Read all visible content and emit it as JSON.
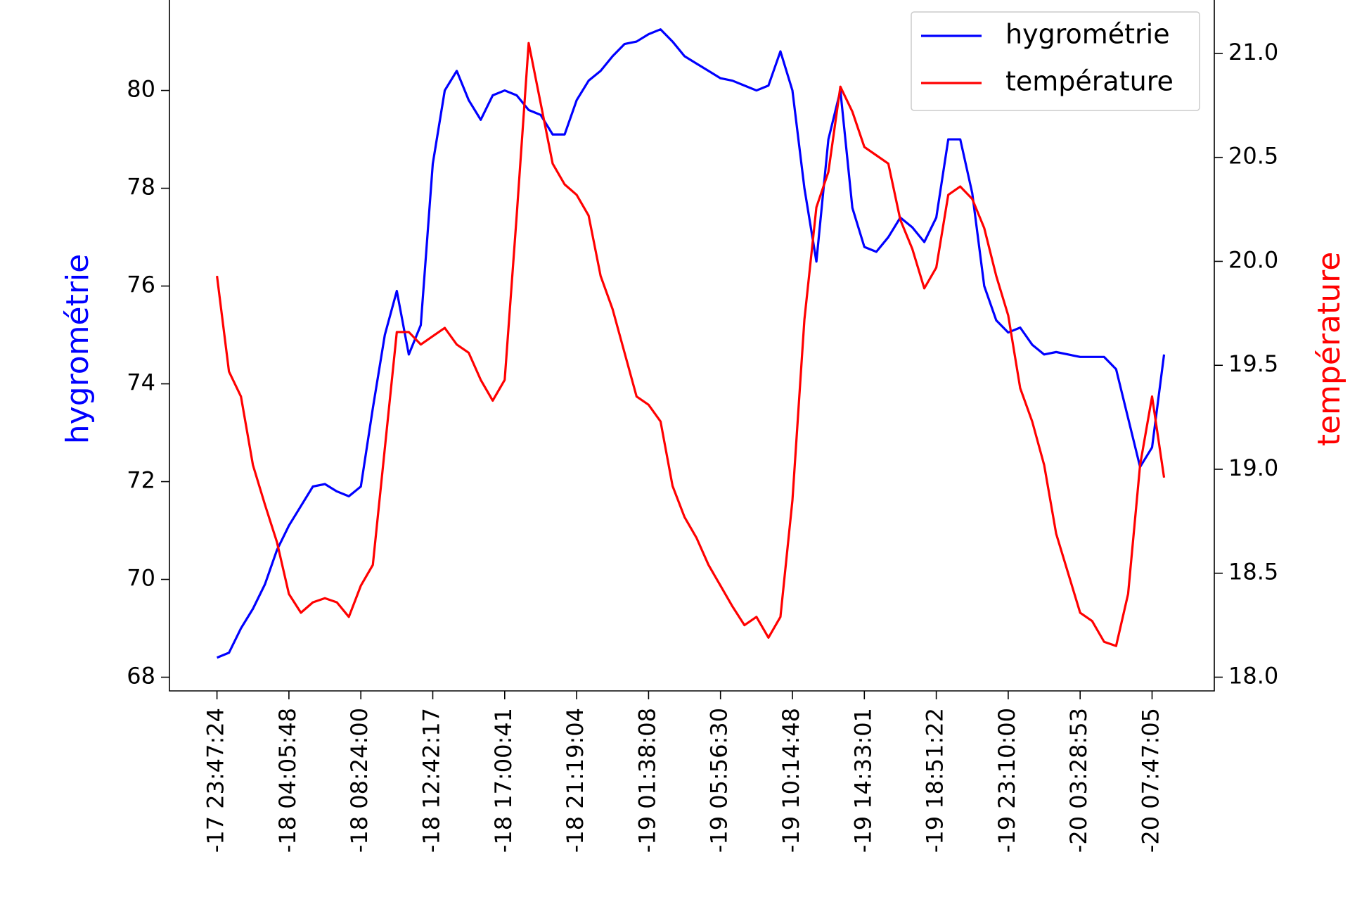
{
  "chart_data": {
    "type": "line",
    "categories": [
      "-17 23:47:24",
      null,
      null,
      null,
      null,
      null,
      "-18 04:05:48",
      null,
      null,
      null,
      null,
      null,
      "-18 08:24:00",
      null,
      null,
      null,
      null,
      null,
      "-18 12:42:17",
      null,
      null,
      null,
      null,
      null,
      "-18 17:00:41",
      null,
      null,
      null,
      null,
      null,
      "-18 21:19:04",
      null,
      null,
      null,
      null,
      null,
      "-19 01:38:08",
      null,
      null,
      null,
      null,
      null,
      "-19 05:56:30",
      null,
      null,
      null,
      null,
      null,
      "-19 10:14:48",
      null,
      null,
      null,
      null,
      null,
      "-19 14:33:01",
      null,
      null,
      null,
      null,
      null,
      "-19 18:51:22",
      null,
      null,
      null,
      null,
      null,
      "-19 23:10:00",
      null,
      null,
      null,
      null,
      null,
      "-20 03:28:53",
      null,
      null,
      null,
      null,
      null,
      "-20 07:47:05",
      null
    ],
    "ylabel": "hygrométrie",
    "y2label": "température",
    "ylim": [
      67.72,
      81.85
    ],
    "yticks": [
      68,
      70,
      72,
      74,
      76,
      78,
      80
    ],
    "y2lim": [
      17.934,
      21.257
    ],
    "y2ticks": [
      {
        "value": 18,
        "label": "18.0"
      },
      18.5,
      {
        "value": 19,
        "label": "19.0"
      },
      19.5,
      {
        "value": 20,
        "label": "20.0"
      },
      20.5,
      {
        "value": 21,
        "label": "21.0"
      }
    ],
    "legend": "upper right",
    "series": [
      {
        "name": "hygrométrie",
        "color": "#0000ff",
        "axis": "y",
        "values": [
          68.4,
          68.5,
          69.0,
          69.4,
          69.9,
          70.6,
          71.1,
          71.5,
          71.9,
          71.95,
          71.8,
          71.7,
          71.9,
          73.5,
          75.0,
          75.9,
          74.6,
          75.2,
          78.5,
          80.0,
          80.4,
          79.8,
          79.4,
          79.9,
          80.0,
          79.9,
          79.6,
          79.5,
          79.1,
          79.1,
          79.8,
          80.2,
          80.4,
          80.7,
          80.95,
          81.0,
          81.15,
          81.25,
          81.0,
          80.7,
          80.55,
          80.4,
          80.25,
          80.2,
          80.1,
          80.0,
          80.1,
          80.8,
          80.0,
          78.0,
          76.5,
          79.0,
          80.0,
          77.6,
          76.8,
          76.7,
          77.0,
          77.4,
          77.2,
          76.9,
          77.4,
          79.0,
          79.0,
          77.9,
          76.0,
          75.3,
          75.05,
          75.15,
          74.8,
          74.6,
          74.65,
          74.6,
          74.55,
          74.55,
          74.55,
          74.3,
          73.3,
          72.3,
          72.7,
          74.6
        ]
      },
      {
        "name": "température",
        "color": "#ff0000",
        "axis": "y2",
        "values": [
          19.93,
          19.47,
          19.35,
          19.02,
          18.83,
          18.65,
          18.4,
          18.31,
          18.36,
          18.38,
          18.36,
          18.29,
          18.44,
          18.54,
          19.1,
          19.66,
          19.66,
          19.6,
          19.64,
          19.68,
          19.6,
          19.56,
          19.43,
          19.33,
          19.43,
          20.22,
          21.05,
          20.76,
          20.47,
          20.37,
          20.32,
          20.22,
          19.93,
          19.77,
          19.56,
          19.35,
          19.31,
          19.23,
          18.92,
          18.77,
          18.67,
          18.54,
          18.44,
          18.34,
          18.25,
          18.29,
          18.19,
          18.29,
          18.85,
          19.72,
          20.26,
          20.43,
          20.84,
          20.72,
          20.55,
          20.51,
          20.47,
          20.2,
          20.06,
          19.87,
          19.97,
          20.32,
          20.36,
          20.3,
          20.16,
          19.93,
          19.74,
          19.39,
          19.23,
          19.02,
          18.69,
          18.5,
          18.31,
          18.27,
          18.17,
          18.15,
          18.4,
          19.02,
          19.35,
          18.96
        ]
      }
    ]
  }
}
